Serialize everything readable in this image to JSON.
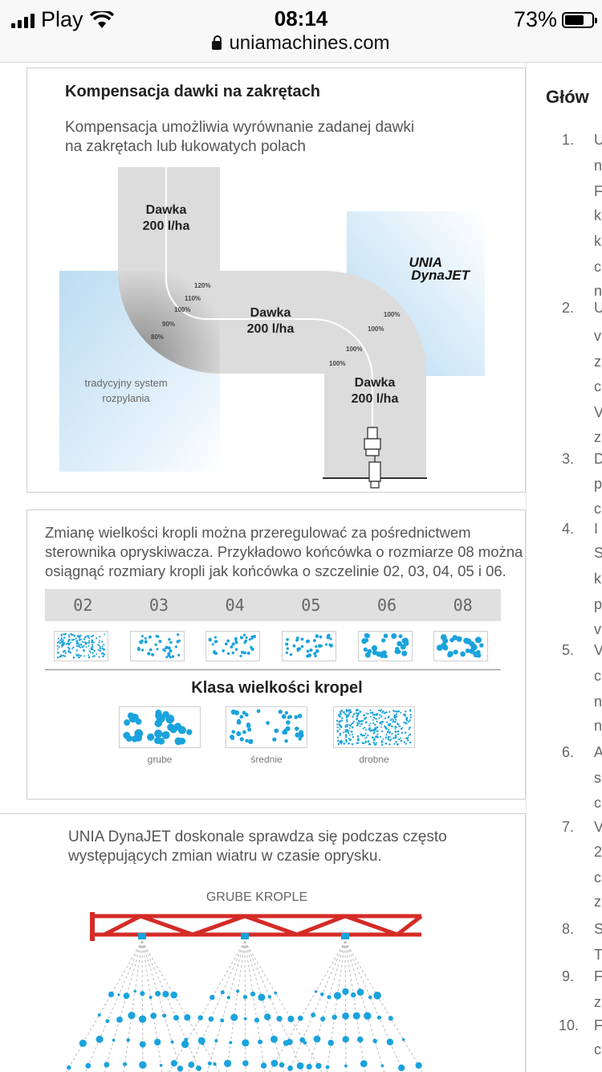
{
  "status_bar": {
    "carrier": "Play",
    "time": "08:14",
    "battery": "73%",
    "battery_level": 0.73,
    "url": "uniamachines.com"
  },
  "colors": {
    "accent_blue": "#1aa3dc",
    "boom_red": "#d42b27",
    "shade_gray": "#dcdcdc"
  },
  "panel_compensation": {
    "title": "Kompensacja dawki na zakrętach",
    "desc_lines": [
      "Kompensacja umożliwia wyrównanie zadanej dawki",
      "na zakrętach lub łukowatych polach"
    ],
    "dose_label": "Dawka",
    "dose_value": "200 l/ha",
    "pct_left": [
      "120%",
      "110%",
      "100%",
      "90%",
      "80%"
    ],
    "pct_right": [
      "100%",
      "100%",
      "100%",
      "100%"
    ],
    "traditional_lines": [
      "tradycyjny system",
      "rozpylania"
    ],
    "brand_line1": "UNIA",
    "brand_line2": "DynaJET"
  },
  "panel_droplets": {
    "desc_lines": [
      "Zmianę wielkości kropli można przeregulować za pośrednictwem",
      "sterownika opryskiwacza. Przykładowo końcówka o rozmiarze 08 można",
      "osiągnąć rozmiary kropli jak końcówka o szczelinie 02, 03, 04, 05 i 06."
    ],
    "sizes": [
      "02",
      "03",
      "04",
      "05",
      "06",
      "08"
    ],
    "class_title": "Klasa wielkości kropel",
    "classes": [
      "grube",
      "średnie",
      "drobne"
    ]
  },
  "panel_wind": {
    "desc_lines": [
      "UNIA DynaJET doskonale sprawdza się podczas często",
      "występujących zmian wiatru w czasie oprysku."
    ],
    "label": "GRUBE KROPLE"
  },
  "right_column": {
    "title_fragment": "Głów",
    "items": [
      {
        "n": "1.",
        "letters": [
          "U",
          "n",
          "F",
          "k",
          "k",
          "c",
          "n"
        ]
      },
      {
        "n": "2.",
        "letters": [
          "U",
          "v",
          "z",
          "c",
          "V",
          "z"
        ]
      },
      {
        "n": "3.",
        "letters": [
          "D",
          "p",
          "c"
        ]
      },
      {
        "n": "4.",
        "letters": [
          "I",
          "S",
          "k",
          "p",
          "v"
        ]
      },
      {
        "n": "5.",
        "letters": [
          "V",
          "c",
          "n",
          "n"
        ]
      },
      {
        "n": "6.",
        "letters": [
          "A",
          "s",
          "c"
        ]
      },
      {
        "n": "7.",
        "letters": [
          "V",
          "2",
          "c",
          "z"
        ]
      },
      {
        "n": "8.",
        "letters": [
          "S",
          "T"
        ]
      },
      {
        "n": "9.",
        "letters": [
          "F",
          "z"
        ]
      },
      {
        "n": "10.",
        "letters": [
          "F",
          "c"
        ]
      }
    ]
  }
}
